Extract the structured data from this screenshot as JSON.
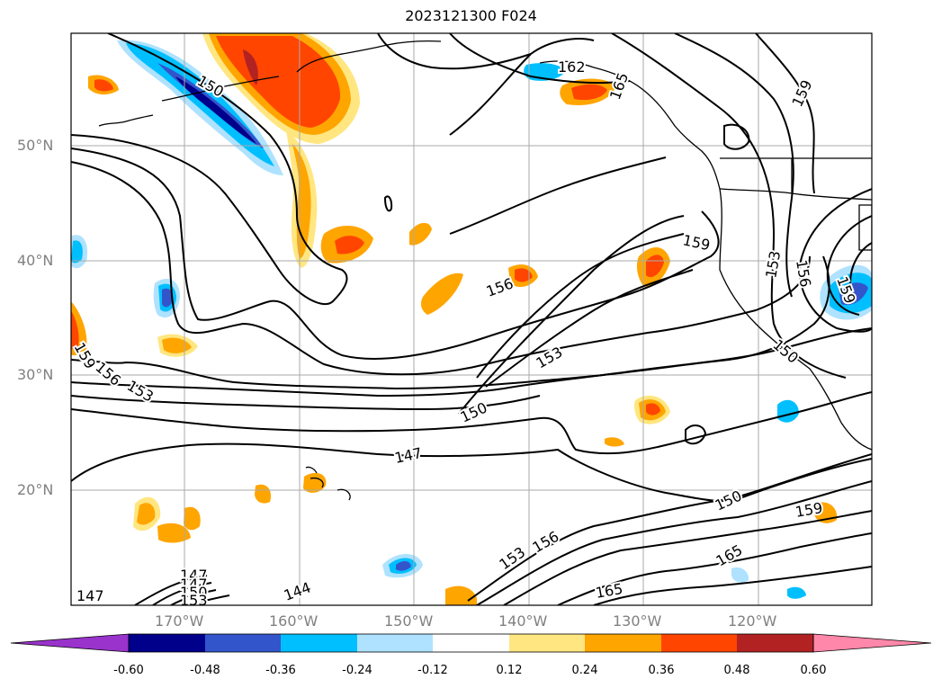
{
  "title": "2023121300 F024",
  "axes": {
    "lat_labels": [
      "50°N",
      "40°N",
      "30°N",
      "20°N"
    ],
    "lon_labels": [
      "170°W",
      "160°W",
      "150°W",
      "140°W",
      "130°W",
      "120°W"
    ],
    "grid": true
  },
  "contour_labels": [
    "147",
    "150",
    "153",
    "156",
    "159",
    "162",
    "165",
    "144",
    "147",
    "150",
    "153",
    "156",
    "159",
    "150",
    "153",
    "156",
    "159",
    "153",
    "156",
    "159",
    "165",
    "159",
    "165",
    "150",
    "147",
    "147",
    "150",
    "153"
  ],
  "colorbar": {
    "ticks": [
      "-0.60",
      "-0.48",
      "-0.36",
      "-0.24",
      "-0.12",
      "0.12",
      "0.24",
      "0.36",
      "0.48",
      "0.60"
    ],
    "colors": [
      "#9933cc",
      "#00008b",
      "#3355cc",
      "#00bfff",
      "#aee2ff",
      "#ffffff",
      "#ffe680",
      "#ffa500",
      "#ff4500",
      "#b22222",
      "#ff88aa"
    ],
    "extend": "both"
  }
}
